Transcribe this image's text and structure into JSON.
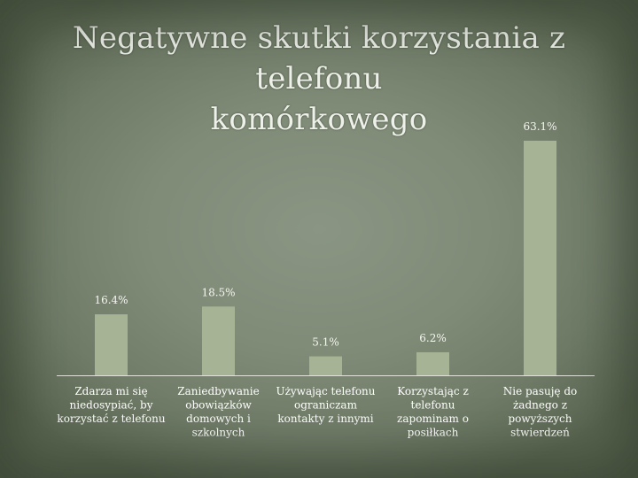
{
  "slide": {
    "title_line1": "Negatywne skutki korzystania z telefonu",
    "title_line2": "komórkowego"
  },
  "colors": {
    "bar": "#a6b394",
    "axis": "#dfe3da",
    "text": "#f4f5f0"
  },
  "chart_data": {
    "type": "bar",
    "categories": [
      "Zdarza mi się niedosypiać, by korzystać z telefonu",
      "Zaniedbywanie obowiązków domowych i szkolnych",
      "Używając telefonu ograniczam kontakty z innymi",
      "Korzystając z telefonu zapominam o posiłkach",
      "Nie pasuję do żadnego z powyższych stwierdzeń"
    ],
    "category_lines": [
      [
        "Zdarza mi się",
        "niedosypiać, by",
        "korzystać z telefonu"
      ],
      [
        "Zaniedbywanie",
        "obowiązków",
        "domowych i",
        "szkolnych"
      ],
      [
        "Używając telefonu",
        "ograniczam",
        "kontakty z innymi"
      ],
      [
        "Korzystając z",
        "telefonu",
        "zapominam o",
        "posiłkach"
      ],
      [
        "Nie pasuję do",
        "żadnego z",
        "powyższych",
        "stwierdzeń"
      ]
    ],
    "values": [
      16.4,
      18.5,
      5.1,
      6.2,
      63.1
    ],
    "labels": [
      "16.4%",
      "18.5%",
      "5.1%",
      "6.2%",
      "63.1%"
    ],
    "ylim": [
      0,
      70
    ],
    "grid": false,
    "legend": "none"
  }
}
